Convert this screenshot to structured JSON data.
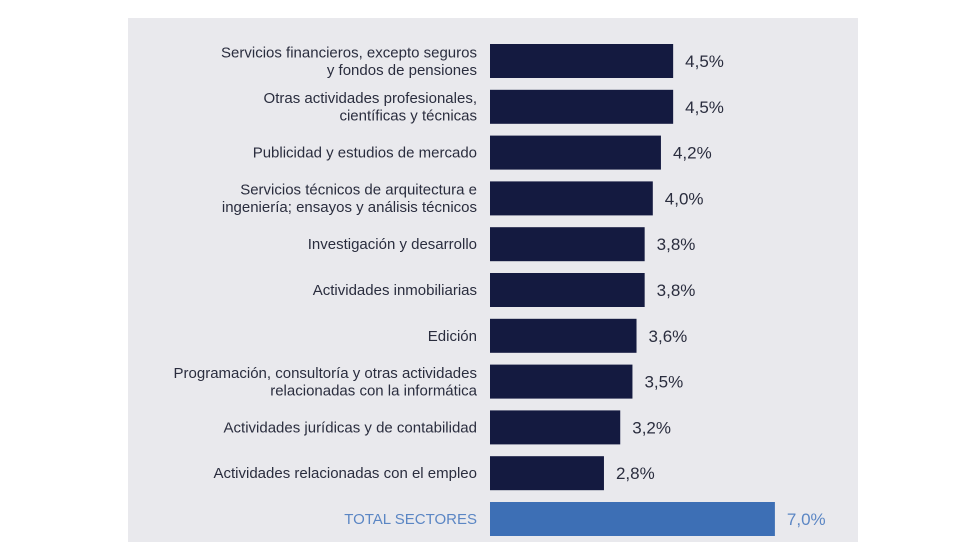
{
  "chart_data": {
    "type": "bar",
    "orientation": "horizontal",
    "categories": [
      [
        "Servicios financieros, excepto seguros",
        "y fondos de pensiones"
      ],
      [
        "Otras actividades profesionales,",
        "científicas y técnicas"
      ],
      [
        "Publicidad y estudios de mercado"
      ],
      [
        "Servicios técnicos de arquitectura e",
        "ingeniería; ensayos y análisis técnicos"
      ],
      [
        "Investigación y desarrollo"
      ],
      [
        "Actividades inmobiliarias"
      ],
      [
        "Edición"
      ],
      [
        "Programación, consultoría y otras actividades",
        "relacionadas con la informática"
      ],
      [
        "Actividades jurídicas y de contabilidad"
      ],
      [
        "Actividades relacionadas con el empleo"
      ],
      [
        "TOTAL SECTORES"
      ]
    ],
    "values": [
      4.5,
      4.5,
      4.2,
      4.0,
      3.8,
      3.8,
      3.6,
      3.5,
      3.2,
      2.8,
      7.0
    ],
    "value_labels": [
      "4,5%",
      "4,5%",
      "4,2%",
      "4,0%",
      "3,8%",
      "3,8%",
      "3,6%",
      "3,5%",
      "3,2%",
      "2,8%",
      "7,0%"
    ],
    "highlight_index": 10,
    "xlim": [
      0,
      7.0
    ],
    "grid": false,
    "colors": {
      "bar": "#141a40",
      "highlight_bar": "#3d6fb5",
      "highlight_label": "#5b86c4",
      "background": "#e9e9ed",
      "text": "#2a2d3e"
    }
  }
}
